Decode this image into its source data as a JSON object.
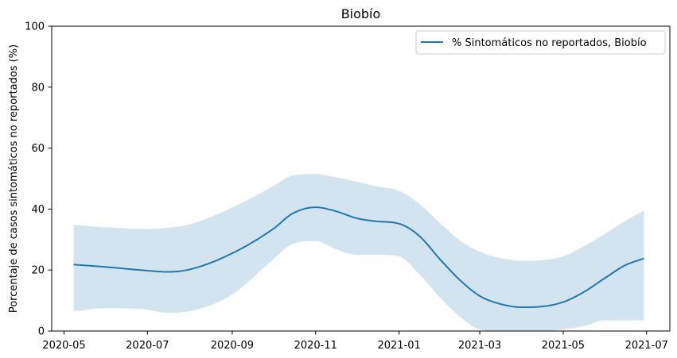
{
  "chart_data": {
    "type": "line",
    "title": "Biobío",
    "xlabel": "",
    "ylabel": "Porcentaje de casos sintomáticos no reportados (%)",
    "ylim": [
      0,
      100
    ],
    "xlim": [
      "2020-04-22",
      "2021-07-18"
    ],
    "x_ticks": [
      "2020-05",
      "2020-07",
      "2020-09",
      "2020-11",
      "2021-01",
      "2021-03",
      "2021-05",
      "2021-07"
    ],
    "y_ticks": [
      0,
      20,
      40,
      60,
      80,
      100
    ],
    "grid": false,
    "legend_position": "top-right",
    "colors": {
      "line": "#1f77b4",
      "band": "#1f77b4",
      "band_opacity": 0.2
    },
    "series": [
      {
        "name": "% Sintomáticos no reportados, Biobío",
        "x": [
          "2020-05-08",
          "2020-06-01",
          "2020-07-01",
          "2020-07-15",
          "2020-08-01",
          "2020-09-01",
          "2020-10-01",
          "2020-10-15",
          "2020-11-01",
          "2020-11-15",
          "2020-12-01",
          "2020-12-15",
          "2021-01-01",
          "2021-01-15",
          "2021-02-01",
          "2021-02-15",
          "2021-03-01",
          "2021-03-15",
          "2021-04-01",
          "2021-04-15",
          "2021-05-01",
          "2021-05-15",
          "2021-06-01",
          "2021-06-15",
          "2021-06-29"
        ],
        "values": [
          21.8,
          21.0,
          19.8,
          19.4,
          20.2,
          25.5,
          33.5,
          38.5,
          40.6,
          39.4,
          37.0,
          36.0,
          35.2,
          31.5,
          23.0,
          16.5,
          11.5,
          9.0,
          7.8,
          8.0,
          9.5,
          12.5,
          17.5,
          21.5,
          23.8
        ],
        "lower": [
          6.5,
          7.5,
          7.0,
          6.0,
          6.5,
          12.0,
          23.5,
          28.5,
          29.5,
          27.0,
          25.0,
          25.0,
          24.5,
          19.0,
          10.5,
          4.5,
          0.5,
          0.0,
          0.0,
          0.0,
          0.5,
          1.5,
          3.5,
          3.5,
          3.5
        ],
        "upper": [
          34.8,
          34.0,
          33.5,
          33.8,
          35.0,
          40.5,
          47.5,
          51.0,
          51.5,
          50.5,
          49.0,
          47.5,
          46.0,
          42.0,
          35.0,
          29.5,
          26.0,
          24.0,
          23.0,
          23.2,
          24.5,
          27.5,
          32.0,
          36.0,
          39.5
        ]
      }
    ]
  }
}
